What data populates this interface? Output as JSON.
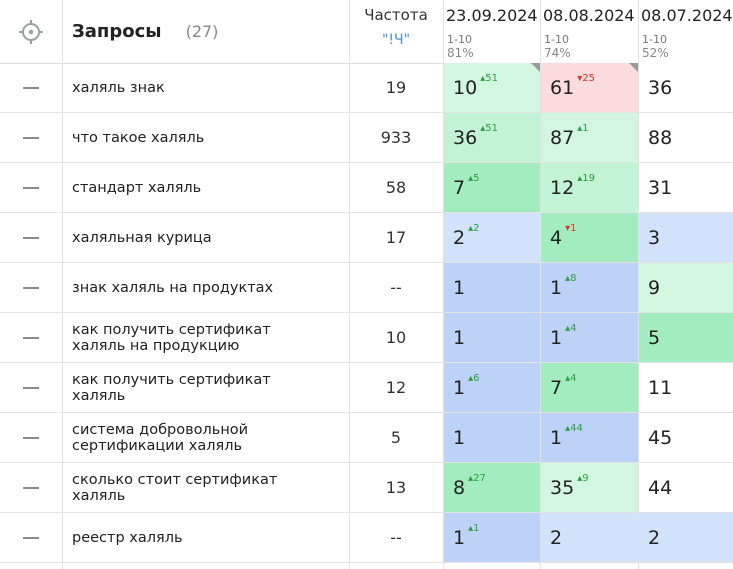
{
  "header": {
    "title": "Запросы",
    "count": "(27)",
    "freq_label": "Частота",
    "freq_mode": "\"!Ч\"",
    "dates": [
      {
        "date": "23.09.2024",
        "range": "1-10",
        "pct": "81%"
      },
      {
        "date": "08.08.2024",
        "range": "1-10",
        "pct": "74%"
      },
      {
        "date": "08.07.2024",
        "range": "1-10",
        "pct": "52%"
      }
    ]
  },
  "colors": {
    "pale_green": "#d2f6df",
    "light_green": "#c2f3d4",
    "green": "#a3ecc0",
    "red": "#fbdcdc",
    "light_blue": "#d3e2fb",
    "blue": "#bcd2f7",
    "none": "#ffffff"
  },
  "rows": [
    {
      "query": [
        "халяль знак"
      ],
      "freq": "19",
      "pos": [
        {
          "v": "10",
          "d": "51",
          "dir": "up",
          "bg": "pale_green",
          "mark": true
        },
        {
          "v": "61",
          "d": "25",
          "dir": "down",
          "bg": "red",
          "mark": true
        },
        {
          "v": "36",
          "d": "",
          "dir": "",
          "bg": "none"
        }
      ]
    },
    {
      "query": [
        "что такое халяль"
      ],
      "freq": "933",
      "pos": [
        {
          "v": "36",
          "d": "51",
          "dir": "up",
          "bg": "light_green"
        },
        {
          "v": "87",
          "d": "1",
          "dir": "up",
          "bg": "pale_green"
        },
        {
          "v": "88",
          "d": "",
          "dir": "",
          "bg": "none"
        }
      ]
    },
    {
      "query": [
        "стандарт халяль"
      ],
      "freq": "58",
      "pos": [
        {
          "v": "7",
          "d": "5",
          "dir": "up",
          "bg": "green"
        },
        {
          "v": "12",
          "d": "19",
          "dir": "up",
          "bg": "light_green"
        },
        {
          "v": "31",
          "d": "",
          "dir": "",
          "bg": "none"
        }
      ]
    },
    {
      "query": [
        "халяльная курица"
      ],
      "freq": "17",
      "pos": [
        {
          "v": "2",
          "d": "2",
          "dir": "up",
          "bg": "light_blue"
        },
        {
          "v": "4",
          "d": "1",
          "dir": "down",
          "bg": "green"
        },
        {
          "v": "3",
          "d": "",
          "dir": "",
          "bg": "light_blue"
        }
      ]
    },
    {
      "query": [
        "знак халяль на продуктах"
      ],
      "freq": "--",
      "pos": [
        {
          "v": "1",
          "d": "",
          "dir": "",
          "bg": "blue"
        },
        {
          "v": "1",
          "d": "8",
          "dir": "up",
          "bg": "blue"
        },
        {
          "v": "9",
          "d": "",
          "dir": "",
          "bg": "pale_green"
        }
      ]
    },
    {
      "query": [
        "как получить сертификат",
        "халяль на продукцию"
      ],
      "freq": "10",
      "pos": [
        {
          "v": "1",
          "d": "",
          "dir": "",
          "bg": "blue"
        },
        {
          "v": "1",
          "d": "4",
          "dir": "up",
          "bg": "blue"
        },
        {
          "v": "5",
          "d": "",
          "dir": "",
          "bg": "green"
        }
      ]
    },
    {
      "query": [
        "как получить сертификат",
        "халяль"
      ],
      "freq": "12",
      "pos": [
        {
          "v": "1",
          "d": "6",
          "dir": "up",
          "bg": "blue"
        },
        {
          "v": "7",
          "d": "4",
          "dir": "up",
          "bg": "green"
        },
        {
          "v": "11",
          "d": "",
          "dir": "",
          "bg": "none"
        }
      ]
    },
    {
      "query": [
        "система добровольной",
        "сертификации халяль"
      ],
      "freq": "5",
      "pos": [
        {
          "v": "1",
          "d": "",
          "dir": "",
          "bg": "blue"
        },
        {
          "v": "1",
          "d": "44",
          "dir": "up",
          "bg": "blue"
        },
        {
          "v": "45",
          "d": "",
          "dir": "",
          "bg": "none"
        }
      ]
    },
    {
      "query": [
        "сколько стоит сертификат",
        "халяль"
      ],
      "freq": "13",
      "pos": [
        {
          "v": "8",
          "d": "27",
          "dir": "up",
          "bg": "green"
        },
        {
          "v": "35",
          "d": "9",
          "dir": "up",
          "bg": "pale_green"
        },
        {
          "v": "44",
          "d": "",
          "dir": "",
          "bg": "none"
        }
      ]
    },
    {
      "query": [
        "реестр халяль"
      ],
      "freq": "--",
      "pos": [
        {
          "v": "1",
          "d": "1",
          "dir": "up",
          "bg": "blue"
        },
        {
          "v": "2",
          "d": "",
          "dir": "",
          "bg": "light_blue"
        },
        {
          "v": "2",
          "d": "",
          "dir": "",
          "bg": "light_blue"
        }
      ]
    }
  ]
}
